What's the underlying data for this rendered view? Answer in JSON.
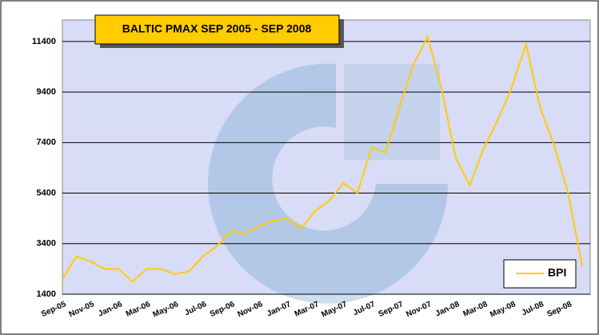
{
  "chart_data": {
    "type": "line",
    "title": "BALTIC PMAX SEP 2005 - SEP 2008",
    "categories": [
      "Sep-05",
      null,
      "Nov-05",
      null,
      "Jan-06",
      null,
      "Mar-06",
      null,
      "May-06",
      null,
      "Jul-06",
      null,
      "Sep-06",
      null,
      "Nov-06",
      null,
      "Jan-07",
      null,
      "Mar-07",
      null,
      "May-07",
      null,
      "Jul-07",
      null,
      "Sep-07",
      null,
      "Nov-07",
      null,
      "Jan-08",
      null,
      "Mar-08",
      null,
      "May-08",
      null,
      "Jul-08",
      null,
      "Sep-08",
      null
    ],
    "series": [
      {
        "name": "BPI",
        "color": "#ffcc00",
        "values": [
          2000,
          2900,
          2700,
          2400,
          2400,
          1900,
          2400,
          2400,
          2200,
          2300,
          2900,
          3300,
          3900,
          3800,
          4100,
          4300,
          4400,
          4000,
          4700,
          5100,
          5800,
          5400,
          7200,
          7000,
          8800,
          10500,
          11600,
          9500,
          6800,
          5700,
          7200,
          8300,
          9600,
          11300,
          8800,
          7300,
          5400,
          2500
        ]
      }
    ],
    "ylim": [
      1400,
      12250
    ],
    "yticks": [
      1400,
      3400,
      5400,
      7400,
      9400,
      11400
    ],
    "grid": true,
    "legend": "lower right"
  }
}
